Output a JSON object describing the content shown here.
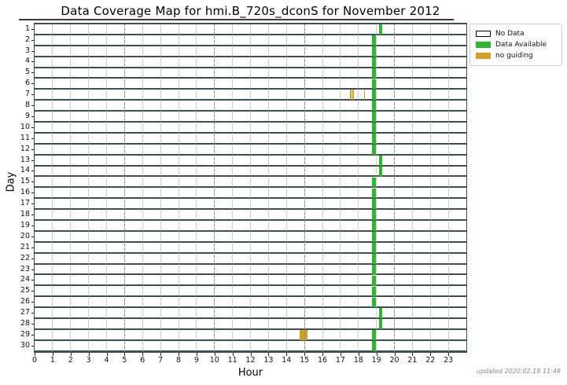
{
  "chart_data": {
    "type": "heatmap",
    "title": "Data Coverage Map for hmi.B_720s_dconS for November 2012",
    "xlabel": "Hour",
    "ylabel": "Day",
    "xlim": [
      0,
      24
    ],
    "x_ticks": [
      0,
      1,
      2,
      3,
      4,
      5,
      6,
      7,
      8,
      9,
      10,
      11,
      12,
      13,
      14,
      15,
      16,
      17,
      18,
      19,
      20,
      21,
      22,
      23
    ],
    "y_ticks": [
      1,
      2,
      3,
      4,
      5,
      6,
      7,
      8,
      9,
      10,
      11,
      12,
      13,
      14,
      15,
      16,
      17,
      18,
      19,
      20,
      21,
      22,
      23,
      24,
      25,
      26,
      27,
      28,
      29,
      30
    ],
    "major_gridline_hours": [
      5,
      10,
      15,
      20
    ],
    "grid": "minor lines every hour, dash-dot lines every 5 hours",
    "legend_position": "outside-top-right",
    "legend": [
      {
        "label": "No Data",
        "color": "#ffffff",
        "border": "#000000"
      },
      {
        "label": "Data Available",
        "color": "#2eb82e",
        "border": "none"
      },
      {
        "label": "no guiding",
        "color": "#d2a01e",
        "border": "none"
      }
    ],
    "status_colors": {
      "available": "#2eb82e",
      "no_guiding": "#d2a01e",
      "no_data": "#ffffff"
    },
    "rows": [
      {
        "day": 1,
        "segments": [
          {
            "start": 19.13,
            "width": 0.21,
            "status": "available"
          }
        ]
      },
      {
        "day": 2,
        "segments": [
          {
            "start": 18.75,
            "width": 0.21,
            "status": "available"
          }
        ]
      },
      {
        "day": 3,
        "segments": [
          {
            "start": 18.75,
            "width": 0.21,
            "status": "available"
          }
        ]
      },
      {
        "day": 4,
        "segments": [
          {
            "start": 18.75,
            "width": 0.21,
            "status": "available"
          }
        ]
      },
      {
        "day": 5,
        "segments": [
          {
            "start": 18.75,
            "width": 0.21,
            "status": "available"
          }
        ]
      },
      {
        "day": 6,
        "segments": [
          {
            "start": 18.75,
            "width": 0.21,
            "status": "available"
          }
        ]
      },
      {
        "day": 7,
        "segments": [
          {
            "start": 17.53,
            "width": 0.09,
            "status": "no_guiding"
          },
          {
            "start": 17.68,
            "width": 0.09,
            "status": "no_guiding"
          },
          {
            "start": 18.3,
            "width": 0.07,
            "status": "no_guiding"
          },
          {
            "start": 18.75,
            "width": 0.21,
            "status": "available"
          }
        ]
      },
      {
        "day": 8,
        "segments": [
          {
            "start": 18.75,
            "width": 0.21,
            "status": "available"
          }
        ]
      },
      {
        "day": 9,
        "segments": [
          {
            "start": 18.75,
            "width": 0.21,
            "status": "available"
          }
        ]
      },
      {
        "day": 10,
        "segments": [
          {
            "start": 18.75,
            "width": 0.21,
            "status": "available"
          }
        ]
      },
      {
        "day": 11,
        "segments": [
          {
            "start": 18.75,
            "width": 0.21,
            "status": "available"
          }
        ]
      },
      {
        "day": 12,
        "segments": [
          {
            "start": 18.75,
            "width": 0.21,
            "status": "available"
          }
        ]
      },
      {
        "day": 13,
        "segments": [
          {
            "start": 19.13,
            "width": 0.21,
            "status": "available"
          }
        ]
      },
      {
        "day": 14,
        "segments": [
          {
            "start": 19.13,
            "width": 0.21,
            "status": "available"
          }
        ]
      },
      {
        "day": 15,
        "segments": [
          {
            "start": 18.75,
            "width": 0.21,
            "status": "available"
          }
        ]
      },
      {
        "day": 16,
        "segments": [
          {
            "start": 18.75,
            "width": 0.21,
            "status": "available"
          }
        ]
      },
      {
        "day": 17,
        "segments": [
          {
            "start": 18.75,
            "width": 0.21,
            "status": "available"
          }
        ]
      },
      {
        "day": 18,
        "segments": [
          {
            "start": 18.75,
            "width": 0.21,
            "status": "available"
          }
        ]
      },
      {
        "day": 19,
        "segments": [
          {
            "start": 18.75,
            "width": 0.21,
            "status": "available"
          }
        ]
      },
      {
        "day": 20,
        "segments": [
          {
            "start": 18.75,
            "width": 0.21,
            "status": "available"
          }
        ]
      },
      {
        "day": 21,
        "segments": [
          {
            "start": 18.75,
            "width": 0.21,
            "status": "available"
          }
        ]
      },
      {
        "day": 22,
        "segments": [
          {
            "start": 18.75,
            "width": 0.21,
            "status": "available"
          }
        ]
      },
      {
        "day": 23,
        "segments": [
          {
            "start": 18.75,
            "width": 0.21,
            "status": "available"
          }
        ]
      },
      {
        "day": 24,
        "segments": [
          {
            "start": 18.75,
            "width": 0.21,
            "status": "available"
          }
        ]
      },
      {
        "day": 25,
        "segments": [
          {
            "start": 18.75,
            "width": 0.21,
            "status": "available"
          }
        ]
      },
      {
        "day": 26,
        "segments": [
          {
            "start": 18.75,
            "width": 0.21,
            "status": "available"
          }
        ]
      },
      {
        "day": 27,
        "segments": [
          {
            "start": 19.13,
            "width": 0.21,
            "status": "available"
          }
        ]
      },
      {
        "day": 28,
        "segments": [
          {
            "start": 19.13,
            "width": 0.21,
            "status": "available"
          }
        ]
      },
      {
        "day": 29,
        "segments": [
          {
            "start": 14.75,
            "width": 0.44,
            "status": "no_guiding"
          },
          {
            "start": 18.75,
            "width": 0.21,
            "status": "available"
          }
        ]
      },
      {
        "day": 30,
        "segments": [
          {
            "start": 18.75,
            "width": 0.21,
            "status": "available"
          }
        ]
      }
    ]
  },
  "footer": {
    "updated": "updated 2020.02.19 11:49"
  }
}
